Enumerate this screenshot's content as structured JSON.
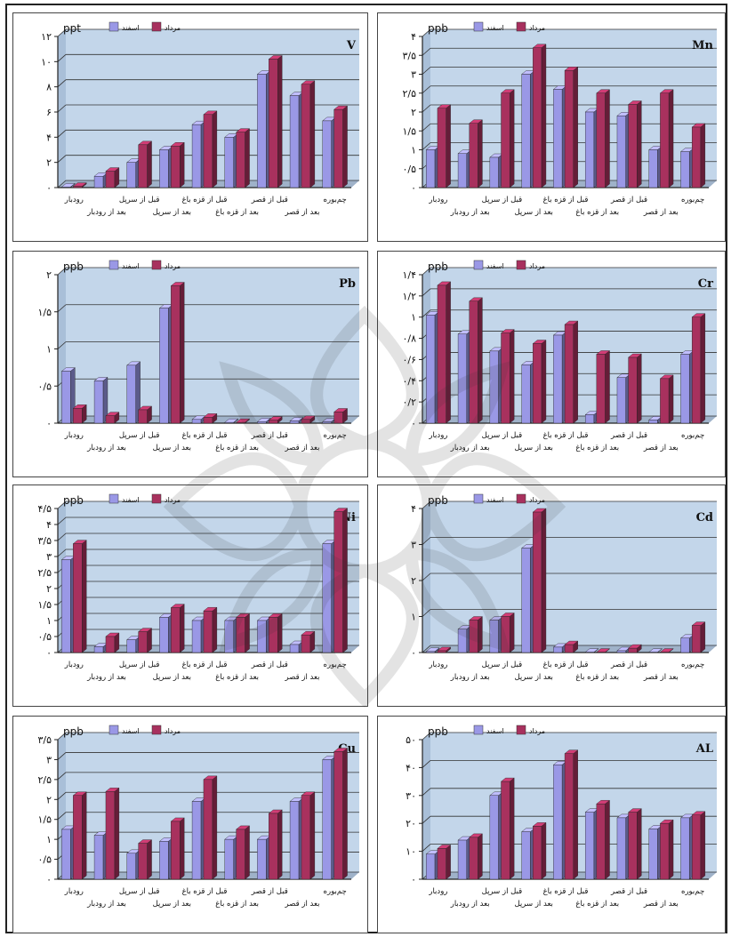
{
  "legend": {
    "series_a_label": "اسفند",
    "series_b_label": "مرداد",
    "series_a_color": "#9a98e6",
    "series_b_color": "#a8315e"
  },
  "unit": "ppb",
  "categories": [
    "رودبار",
    "بعد از رودبار",
    "قبل از سرپل",
    "بعد از سرپل",
    "قبل از قزه باغ",
    "بعد از قزه باغ",
    "قبل از قصر",
    "بعد از قصر",
    "چم‌بوره"
  ],
  "chart_data": [
    {
      "type": "bar",
      "element": "V",
      "unit": "ppt",
      "ylim": [
        0,
        12
      ],
      "yticks": [
        "۰",
        "۲",
        "۴",
        "۶",
        "۸",
        "۱۰",
        "۱۲"
      ],
      "yticks_vals": [
        0,
        2,
        4,
        6,
        8,
        10,
        12
      ],
      "series": [
        {
          "name": "اسفند",
          "values": [
            0.05,
            0.9,
            2.0,
            3.0,
            5.0,
            4.0,
            9.0,
            7.3,
            5.3
          ]
        },
        {
          "name": "مرداد",
          "values": [
            0.1,
            1.3,
            3.4,
            3.3,
            5.8,
            4.4,
            10.2,
            8.2,
            6.2
          ]
        }
      ]
    },
    {
      "type": "bar",
      "element": "Mn",
      "unit": "ppb",
      "ylim": [
        0,
        4
      ],
      "yticks": [
        "۰",
        "۰/۵",
        "۱",
        "۱/۵",
        "۲",
        "۲/۵",
        "۳",
        "۳/۵",
        "۴"
      ],
      "yticks_vals": [
        0,
        0.5,
        1,
        1.5,
        2,
        2.5,
        3,
        3.5,
        4
      ],
      "series": [
        {
          "name": "اسفند",
          "values": [
            1.0,
            0.9,
            0.8,
            3.0,
            2.6,
            2.0,
            1.9,
            1.0,
            0.95
          ]
        },
        {
          "name": "مرداد",
          "values": [
            2.1,
            1.7,
            2.5,
            3.7,
            3.1,
            2.5,
            2.2,
            2.5,
            1.6
          ]
        }
      ]
    },
    {
      "type": "bar",
      "element": "Pb",
      "unit": "ppb",
      "ylim": [
        0,
        2
      ],
      "yticks": [
        "۰",
        "۰/۵",
        "۱",
        "۱/۵",
        "۲"
      ],
      "yticks_vals": [
        0,
        0.5,
        1,
        1.5,
        2
      ],
      "series": [
        {
          "name": "اسفند",
          "values": [
            0.7,
            0.57,
            0.78,
            1.55,
            0.05,
            0.01,
            0.02,
            0.03,
            0.02
          ]
        },
        {
          "name": "مرداد",
          "values": [
            0.2,
            0.1,
            0.18,
            1.85,
            0.08,
            0.01,
            0.04,
            0.05,
            0.15
          ]
        }
      ]
    },
    {
      "type": "bar",
      "element": "Cr",
      "unit": "ppb",
      "ylim": [
        0,
        1.4
      ],
      "yticks": [
        "۰",
        "۰/۲",
        "۰/۴",
        "۰/۶",
        "۰/۸",
        "۱",
        "۱/۲",
        "۱/۴"
      ],
      "yticks_vals": [
        0,
        0.2,
        0.4,
        0.6,
        0.8,
        1,
        1.2,
        1.4
      ],
      "series": [
        {
          "name": "اسفند",
          "values": [
            1.02,
            0.84,
            0.68,
            0.55,
            0.83,
            0.08,
            0.43,
            0.03,
            0.65
          ]
        },
        {
          "name": "مرداد",
          "values": [
            1.3,
            1.15,
            0.85,
            0.75,
            0.93,
            0.65,
            0.62,
            0.42,
            1.0
          ]
        }
      ]
    },
    {
      "type": "bar",
      "element": "Ni",
      "unit": "ppb",
      "ylim": [
        0,
        4.5
      ],
      "yticks": [
        "۰",
        "۰/۵",
        "۱",
        "۱/۵",
        "۲",
        "۲/۵",
        "۳",
        "۳/۵",
        "۴",
        "۴/۵"
      ],
      "yticks_vals": [
        0,
        0.5,
        1,
        1.5,
        2,
        2.5,
        3,
        3.5,
        4,
        4.5
      ],
      "series": [
        {
          "name": "اسفند",
          "values": [
            2.9,
            0.18,
            0.4,
            1.1,
            1.0,
            1.0,
            1.0,
            0.25,
            3.4
          ]
        },
        {
          "name": "مرداد",
          "values": [
            3.4,
            0.5,
            0.65,
            1.4,
            1.3,
            1.1,
            1.1,
            0.55,
            4.4
          ]
        }
      ]
    },
    {
      "type": "bar",
      "element": "Cd",
      "unit": "ppb",
      "ylim": [
        0,
        4
      ],
      "yticks": [
        "۰",
        "۱",
        "۲",
        "۳",
        "۴"
      ],
      "yticks_vals": [
        0,
        1,
        2,
        3,
        4
      ],
      "series": [
        {
          "name": "اسفند",
          "values": [
            0.03,
            0.65,
            0.9,
            2.9,
            0.15,
            0.01,
            0.05,
            0.01,
            0.4
          ]
        },
        {
          "name": "مرداد",
          "values": [
            0.05,
            0.9,
            1.0,
            3.9,
            0.22,
            0.01,
            0.12,
            0.01,
            0.75
          ]
        }
      ]
    },
    {
      "type": "bar",
      "element": "Cu",
      "unit": "ppb",
      "ylim": [
        0,
        3.5
      ],
      "yticks": [
        "۰",
        "۰/۵",
        "۱",
        "۱/۵",
        "۲",
        "۲/۵",
        "۳",
        "۳/۵"
      ],
      "yticks_vals": [
        0,
        0.5,
        1,
        1.5,
        2,
        2.5,
        3,
        3.5
      ],
      "series": [
        {
          "name": "اسفند",
          "values": [
            1.25,
            1.1,
            0.65,
            0.95,
            1.95,
            1.0,
            1.0,
            1.95,
            3.0
          ]
        },
        {
          "name": "مرداد",
          "values": [
            2.1,
            2.2,
            0.9,
            1.45,
            2.5,
            1.25,
            1.65,
            2.1,
            3.2
          ]
        }
      ]
    },
    {
      "type": "bar",
      "element": "AL",
      "unit": "ppb",
      "ylim": [
        0,
        50
      ],
      "yticks": [
        "۰",
        "۱۰",
        "۲۰",
        "۳۰",
        "۴۰",
        "۵۰"
      ],
      "yticks_vals": [
        0,
        10,
        20,
        30,
        40,
        50
      ],
      "series": [
        {
          "name": "اسفند",
          "values": [
            9,
            14,
            30,
            17,
            41,
            24,
            22,
            18,
            22
          ]
        },
        {
          "name": "مرداد",
          "values": [
            11,
            15,
            35,
            19,
            45,
            27,
            24,
            20,
            23
          ]
        }
      ]
    }
  ]
}
